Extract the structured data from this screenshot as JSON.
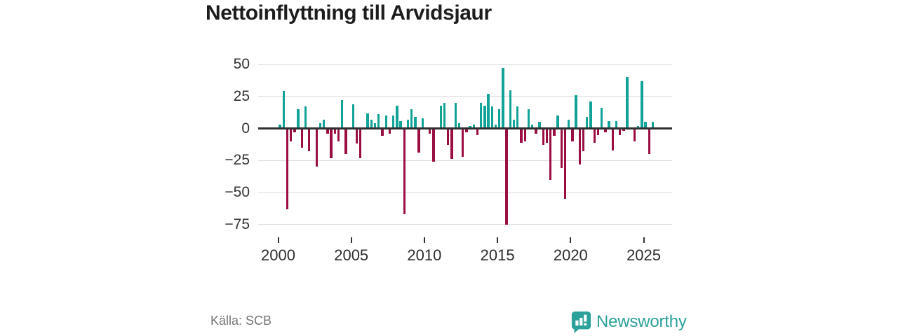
{
  "title": "Nettoinflyttning till Arvidsjaur",
  "source": "Källa: SCB",
  "brand": {
    "name": "Newsworthy",
    "icon": "bar-chart-speech-bubble",
    "color": "#2ba19a"
  },
  "colors": {
    "positive": "#12a398",
    "negative": "#9b0e44",
    "grid": "#dcdcdc",
    "axis": "#2f2f2f",
    "text": "#333333"
  },
  "chart_data": {
    "type": "bar",
    "title": "Nettoinflyttning till Arvidsjaur",
    "frequency": "quarterly",
    "start": "2000 Q1",
    "end": "2025 Q3",
    "x_ticks": [
      2000,
      2005,
      2010,
      2015,
      2020,
      2025
    ],
    "y_ticks": [
      50,
      25,
      0,
      -25,
      -50,
      -75
    ],
    "ylim": [
      -80,
      54
    ],
    "grid": true,
    "series": [
      {
        "name": "Nettoinflyttning",
        "values": [
          3,
          29,
          -63,
          -10,
          -3,
          15,
          -15,
          17,
          -18,
          -1,
          -30,
          4,
          7,
          -4,
          -23,
          -4,
          -10,
          22,
          -20,
          0,
          19,
          -12,
          -23,
          0,
          12,
          7,
          4,
          11,
          -6,
          10,
          -4,
          10,
          18,
          6,
          -67,
          7,
          15,
          9,
          -19,
          8,
          0,
          -4,
          -26,
          0,
          18,
          20,
          -13,
          -24,
          20,
          4,
          -22,
          -3,
          2,
          3,
          -5,
          20,
          18,
          27,
          17,
          3,
          15,
          47,
          -75,
          30,
          7,
          17,
          -11,
          -10,
          15,
          3,
          -4,
          5,
          -13,
          -11,
          -40,
          -6,
          10,
          -31,
          -55,
          7,
          -10,
          26,
          -28,
          -18,
          9,
          21,
          -11,
          -5,
          16,
          -3,
          6,
          -17,
          6,
          -5,
          -2,
          40,
          0,
          -10,
          2,
          37,
          5,
          -20,
          5
        ]
      }
    ]
  }
}
